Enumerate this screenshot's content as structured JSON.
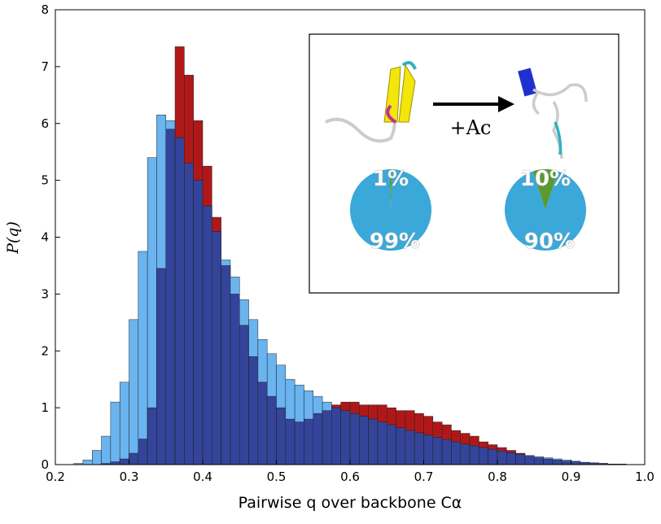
{
  "chart_data": {
    "type": "histogram",
    "xlabel": "Pairwise q over backbone Cα",
    "ylabel": "P(q)",
    "xlim": [
      0.2,
      1.0
    ],
    "ylim": [
      0,
      8
    ],
    "xticks": [
      0.2,
      0.3,
      0.4,
      0.5,
      0.6,
      0.7,
      0.8,
      0.9,
      {
        "value": 1.0,
        "label": "1.0"
      }
    ],
    "yticks": [
      0,
      1,
      2,
      3,
      4,
      5,
      6,
      7,
      8
    ],
    "overlap_color": "#34449a",
    "bins": [
      0.2,
      0.2125,
      0.225,
      0.2375,
      0.25,
      0.2625,
      0.275,
      0.2875,
      0.3,
      0.3125,
      0.325,
      0.3375,
      0.35,
      0.3625,
      0.375,
      0.3875,
      0.4,
      0.4125,
      0.425,
      0.4375,
      0.45,
      0.4625,
      0.475,
      0.4875,
      0.5,
      0.5125,
      0.525,
      0.5375,
      0.55,
      0.5625,
      0.575,
      0.5875,
      0.6,
      0.6125,
      0.625,
      0.6375,
      0.65,
      0.6625,
      0.675,
      0.6875,
      0.7,
      0.7125,
      0.725,
      0.7375,
      0.75,
      0.7625,
      0.775,
      0.7875,
      0.8,
      0.8125,
      0.825,
      0.8375,
      0.85,
      0.8625,
      0.875,
      0.8875,
      0.9,
      0.9125,
      0.925,
      0.9375,
      0.95,
      0.9625,
      0.975,
      0.9875,
      1.0
    ],
    "series": [
      {
        "color": "#b01818",
        "values": [
          0,
          0,
          0,
          0,
          0,
          0.02,
          0.05,
          0.1,
          0.2,
          0.45,
          1.0,
          3.45,
          5.9,
          7.35,
          6.85,
          6.05,
          5.25,
          4.35,
          3.5,
          3.0,
          2.45,
          1.9,
          1.45,
          1.2,
          1.0,
          0.8,
          0.75,
          0.8,
          0.9,
          0.95,
          1.05,
          1.1,
          1.1,
          1.05,
          1.05,
          1.05,
          1.0,
          0.95,
          0.95,
          0.9,
          0.85,
          0.75,
          0.7,
          0.6,
          0.55,
          0.5,
          0.4,
          0.35,
          0.3,
          0.25,
          0.2,
          0.15,
          0.12,
          0.1,
          0.08,
          0.06,
          0.05,
          0.04,
          0.03,
          0.02,
          0.01,
          0.01,
          0,
          0
        ]
      },
      {
        "color": "#6ab4f0",
        "values": [
          0,
          0,
          0.02,
          0.08,
          0.25,
          0.5,
          1.1,
          1.45,
          2.55,
          3.75,
          5.4,
          6.15,
          6.05,
          5.75,
          5.3,
          5.0,
          4.55,
          4.1,
          3.6,
          3.3,
          2.9,
          2.55,
          2.2,
          1.95,
          1.75,
          1.5,
          1.4,
          1.3,
          1.2,
          1.1,
          1.0,
          0.95,
          0.9,
          0.85,
          0.8,
          0.75,
          0.7,
          0.65,
          0.6,
          0.56,
          0.52,
          0.48,
          0.44,
          0.4,
          0.36,
          0.33,
          0.3,
          0.27,
          0.24,
          0.21,
          0.18,
          0.16,
          0.14,
          0.12,
          0.1,
          0.08,
          0.06,
          0.04,
          0.03,
          0.02,
          0.01,
          0.005,
          0,
          0
        ]
      }
    ],
    "inset": {
      "annotation": "+Ac",
      "colors": [
        "#5a9a30",
        "#3aa8d8"
      ],
      "pies": [
        {
          "values": [
            1,
            99
          ],
          "value_labels": [
            "1%",
            "99%"
          ]
        },
        {
          "values": [
            10,
            90
          ],
          "value_labels": [
            "10%",
            "90%"
          ]
        }
      ]
    }
  }
}
